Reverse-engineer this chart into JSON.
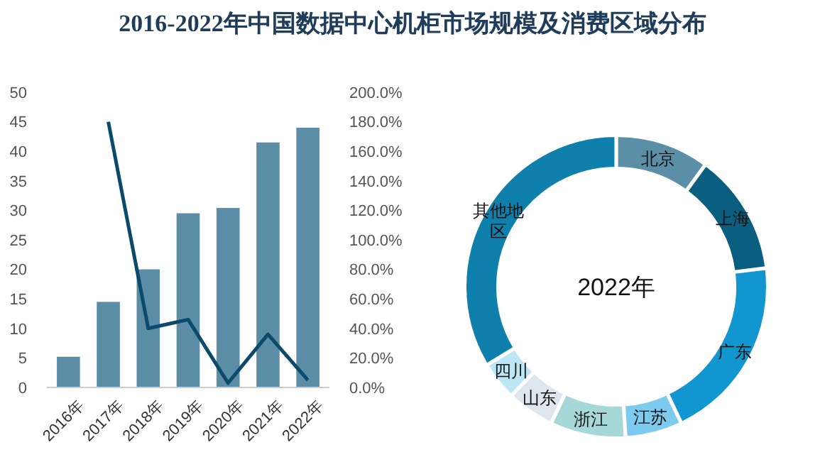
{
  "chart_data": [
    {
      "type": "bar",
      "title": "2016-2022年中国数据中心机柜市场规模及消费区域分布",
      "categories": [
        "2016年",
        "2017年",
        "2018年",
        "2019年",
        "2020年",
        "2021年",
        "2022年"
      ],
      "series": [
        {
          "type": "bar",
          "color": "#5b8ea6",
          "values": [
            5.2,
            14.5,
            20,
            29.5,
            30.4,
            41.5,
            44
          ]
        },
        {
          "type": "line",
          "axis": "y2",
          "color": "#0b4a6b",
          "values": [
            null,
            180,
            40,
            46,
            3,
            36,
            5
          ]
        }
      ],
      "ylim": [
        0,
        50
      ],
      "yticks": [
        0,
        5,
        10,
        15,
        20,
        25,
        30,
        35,
        40,
        45,
        50
      ],
      "y2lim": [
        0,
        200
      ],
      "y2ticks": [
        {
          "value": 0,
          "label": "0.0%"
        },
        {
          "value": 20,
          "label": "20.0%"
        },
        {
          "value": 40,
          "label": "40.0%"
        },
        {
          "value": 60,
          "label": "60.0%"
        },
        {
          "value": 80,
          "label": "80.0%"
        },
        {
          "value": 100,
          "label": "100.0%"
        },
        {
          "value": 120,
          "label": "120.0%"
        },
        {
          "value": 140,
          "label": "140.0%"
        },
        {
          "value": 160,
          "label": "160.0%"
        },
        {
          "value": 180,
          "label": "180.0%"
        },
        {
          "value": 200,
          "label": "200.0%"
        }
      ],
      "grid": false,
      "legend": false,
      "marker": "none",
      "line_style": "solid"
    },
    {
      "type": "donut",
      "title": "2022年",
      "categories": [
        "北京",
        "上海",
        "广东",
        "江苏",
        "浙江",
        "山东",
        "四川",
        "其他地区"
      ],
      "values": [
        10,
        13,
        20,
        6,
        8,
        5,
        4,
        34
      ],
      "colors": [
        "#5b8fa8",
        "#0a5f80",
        "#1196cf",
        "#7ccbee",
        "#a6d8d8",
        "#dde6ec",
        "#bde6f5",
        "#0f7fab"
      ],
      "legend": false
    }
  ]
}
